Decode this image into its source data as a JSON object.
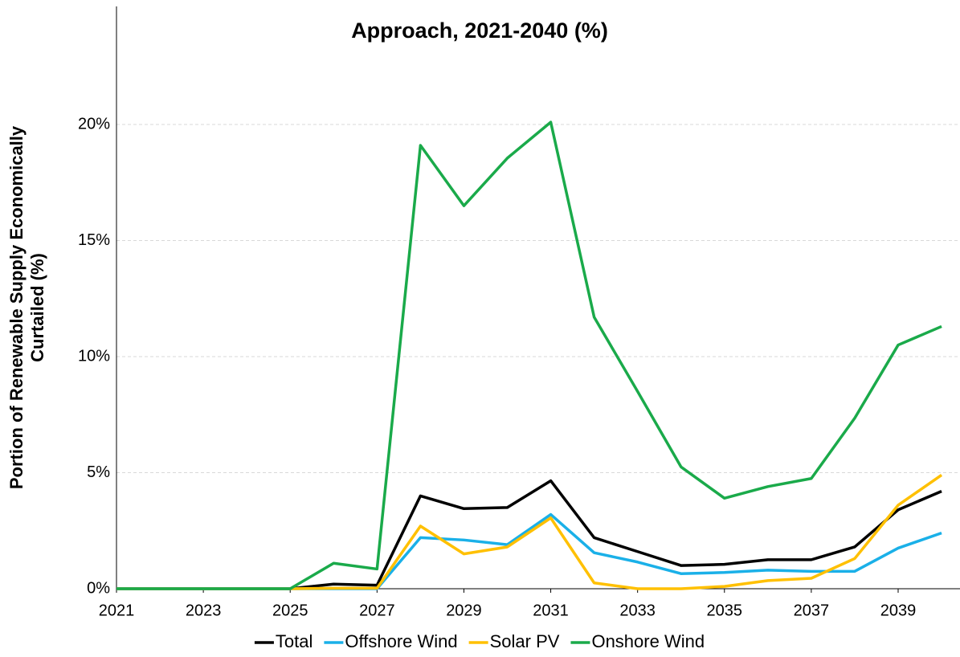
{
  "chart_data": {
    "type": "line",
    "title": "Approach, 2021-2040 (%)",
    "ylabel": [
      "Portion of Renewable Supply Economically",
      "Curtailed (%)"
    ],
    "x": [
      2021,
      2022,
      2023,
      2024,
      2025,
      2026,
      2027,
      2028,
      2029,
      2030,
      2031,
      2032,
      2033,
      2034,
      2035,
      2036,
      2037,
      2038,
      2039,
      2040
    ],
    "xlim": [
      2021,
      2040.4
    ],
    "xticks": [
      2021,
      2023,
      2025,
      2027,
      2029,
      2031,
      2033,
      2035,
      2037,
      2039
    ],
    "ylim": [
      0,
      25
    ],
    "yticks": [
      {
        "value": 0,
        "label": "0%"
      },
      {
        "value": 5,
        "label": "5%"
      },
      {
        "value": 10,
        "label": "10%"
      },
      {
        "value": 15,
        "label": "15%"
      },
      {
        "value": 20,
        "label": "20%"
      }
    ],
    "grid": true,
    "legend": "bottom",
    "series": [
      {
        "name": "Total",
        "color": "#000000",
        "values": [
          0,
          0,
          0,
          0,
          0,
          0.2,
          0.15,
          4.0,
          3.45,
          3.5,
          4.65,
          2.2,
          1.6,
          1.0,
          1.05,
          1.25,
          1.25,
          1.8,
          3.4,
          4.2
        ]
      },
      {
        "name": "Offshore Wind",
        "color": "#1ab0e8",
        "values": [
          0,
          0,
          0,
          0,
          0,
          0,
          0,
          2.2,
          2.1,
          1.9,
          3.2,
          1.55,
          1.15,
          0.65,
          0.7,
          0.8,
          0.75,
          0.75,
          1.75,
          2.4
        ]
      },
      {
        "name": "Solar PV",
        "color": "#ffc000",
        "values": [
          0,
          0,
          0,
          0,
          0,
          0.02,
          0.02,
          2.7,
          1.5,
          1.8,
          3.05,
          0.25,
          0,
          0,
          0.1,
          0.35,
          0.45,
          1.3,
          3.6,
          4.9
        ]
      },
      {
        "name": "Onshore Wind",
        "color": "#1aaa4a",
        "values": [
          0,
          0,
          0,
          0,
          0,
          1.1,
          0.85,
          19.1,
          16.5,
          18.55,
          20.1,
          11.7,
          8.5,
          5.25,
          3.9,
          4.4,
          4.75,
          7.35,
          10.5,
          11.3
        ]
      }
    ]
  }
}
